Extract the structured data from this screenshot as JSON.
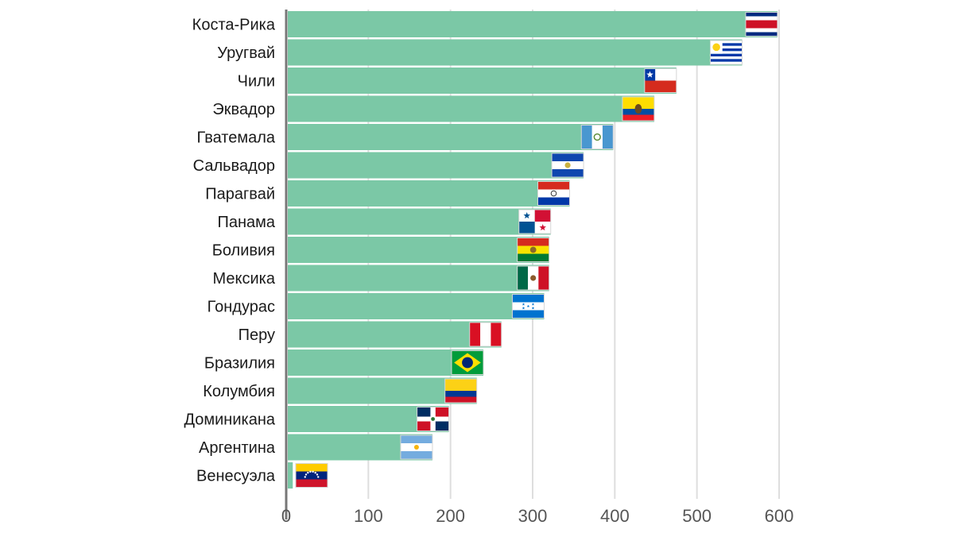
{
  "chart_data": {
    "type": "bar",
    "orientation": "horizontal",
    "title": "",
    "xlabel": "",
    "ylabel": "",
    "xlim": [
      0,
      610
    ],
    "x_ticks": [
      0,
      100,
      200,
      300,
      400,
      500,
      600
    ],
    "grid": "vertical",
    "legend": "none",
    "bar_color": "#7bc8a6",
    "categories": [
      "Коста-Рика",
      "Уругвай",
      "Чили",
      "Эквадор",
      "Гватемала",
      "Сальвадор",
      "Парагвай",
      "Панама",
      "Боливия",
      "Мексика",
      "Гондурас",
      "Перу",
      "Бразилия",
      "Колумбия",
      "Доминикана",
      "Аргентина",
      "Венесуэла"
    ],
    "values": [
      598,
      555,
      475,
      448,
      398,
      362,
      345,
      322,
      320,
      320,
      314,
      262,
      240,
      232,
      198,
      178,
      8
    ],
    "flags": [
      "costa-rica-flag",
      "uruguay-flag",
      "chile-flag",
      "ecuador-flag",
      "guatemala-flag",
      "el-salvador-flag",
      "paraguay-flag",
      "panama-flag",
      "bolivia-flag",
      "mexico-flag",
      "honduras-flag",
      "peru-flag",
      "brazil-flag",
      "colombia-flag",
      "dominican-republic-flag",
      "argentina-flag",
      "venezuela-flag"
    ]
  }
}
